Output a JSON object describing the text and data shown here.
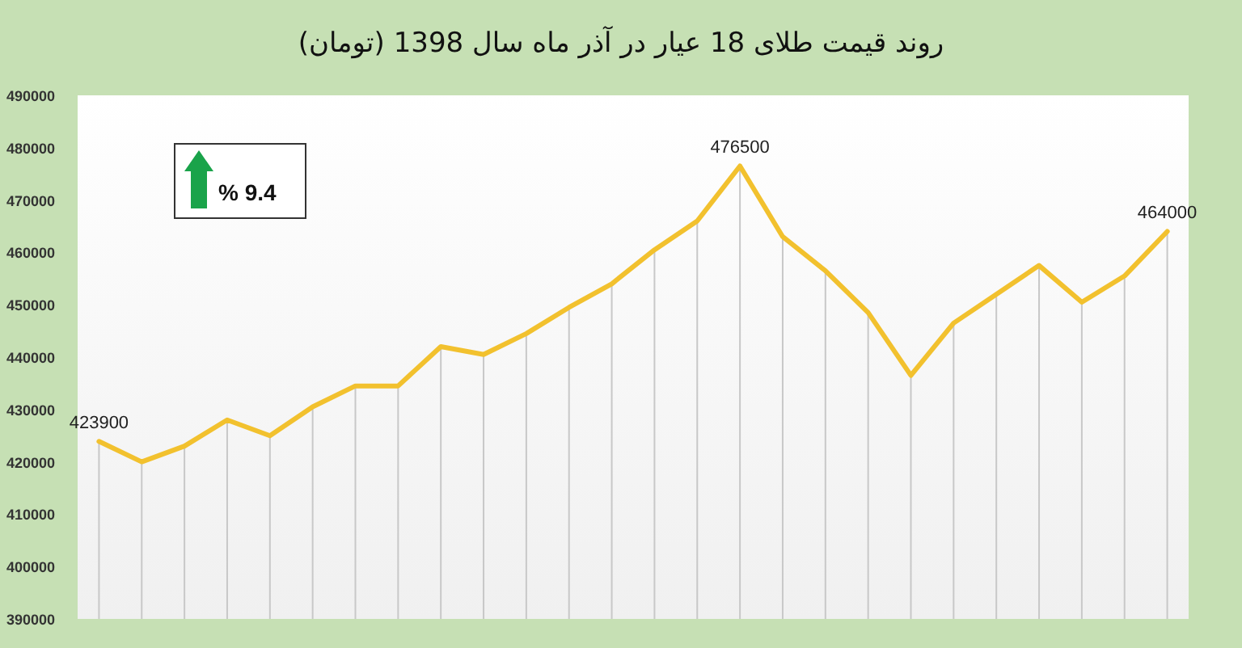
{
  "chart_data": {
    "type": "line",
    "title": "روند قیمت طلای 18 عیار در آذر ماه سال 1398 (تومان)",
    "categories": [
      null,
      null,
      null,
      null,
      null,
      null,
      null,
      null,
      null,
      null,
      null,
      null,
      null,
      null,
      null,
      null,
      null,
      null,
      null,
      null,
      null,
      null,
      null,
      null,
      null,
      null
    ],
    "series": [
      {
        "color": "#f2c12e",
        "values": [
          423900,
          420000,
          423000,
          428000,
          425000,
          430500,
          434500,
          434500,
          442000,
          440500,
          444500,
          449500,
          454000,
          460500,
          466000,
          476500,
          463000,
          456500,
          448500,
          436500,
          446500,
          452000,
          457500,
          450500,
          455500,
          464000
        ],
        "value_labels": [
          "423900",
          null,
          null,
          null,
          null,
          null,
          null,
          null,
          null,
          null,
          null,
          null,
          null,
          null,
          null,
          "476500",
          null,
          null,
          null,
          null,
          null,
          null,
          null,
          null,
          null,
          "464000"
        ]
      }
    ],
    "ylim": [
      390000,
      490000
    ],
    "yticks": [
      390000,
      400000,
      410000,
      420000,
      430000,
      440000,
      450000,
      460000,
      470000,
      480000,
      490000
    ],
    "annotations": [
      "% 9.4"
    ],
    "grid": "x",
    "marker": "none",
    "line_style": "solid"
  }
}
